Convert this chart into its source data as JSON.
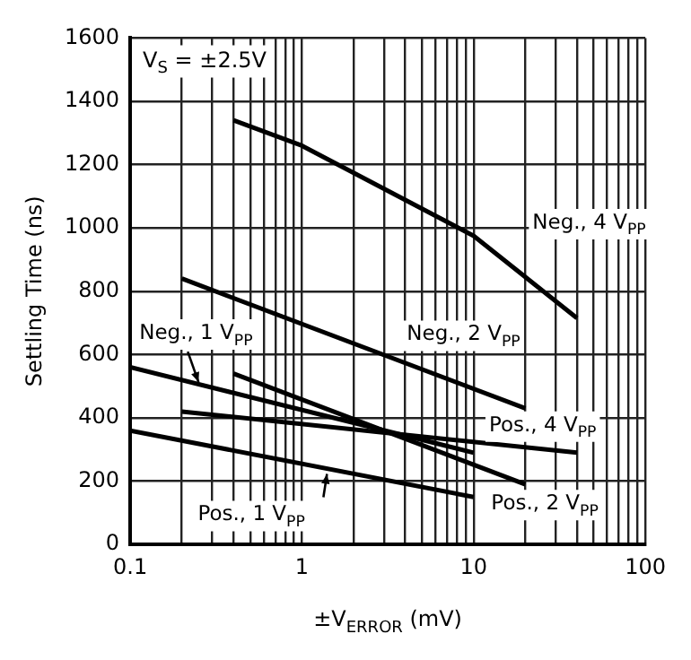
{
  "chart_data": {
    "type": "line",
    "xlabel": "±V$_{ERROR}$ (mV)",
    "ylabel": "Settling Time (ns)",
    "log": "x",
    "grid": true,
    "xlim": [
      0.1,
      100
    ],
    "xticks": [
      0.1,
      {
        "value": 0.2,
        "label": null
      },
      {
        "value": 0.3,
        "label": null
      },
      {
        "value": 0.4,
        "label": null
      },
      {
        "value": 0.5,
        "label": null
      },
      {
        "value": 0.6,
        "label": null
      },
      {
        "value": 0.7,
        "label": null
      },
      {
        "value": 0.8,
        "label": null
      },
      {
        "value": 0.9,
        "label": null
      },
      1,
      {
        "value": 2,
        "label": null
      },
      {
        "value": 3,
        "label": null
      },
      {
        "value": 4,
        "label": null
      },
      {
        "value": 5,
        "label": null
      },
      {
        "value": 6,
        "label": null
      },
      {
        "value": 7,
        "label": null
      },
      {
        "value": 8,
        "label": null
      },
      {
        "value": 9,
        "label": null
      },
      10,
      {
        "value": 20,
        "label": null
      },
      {
        "value": 30,
        "label": null
      },
      {
        "value": 40,
        "label": null
      },
      {
        "value": 50,
        "label": null
      },
      {
        "value": 60,
        "label": null
      },
      {
        "value": 70,
        "label": null
      },
      {
        "value": 80,
        "label": null
      },
      {
        "value": 90,
        "label": null
      },
      100
    ],
    "ylim": [
      0,
      1600
    ],
    "yticks": [
      0,
      200,
      400,
      600,
      800,
      1000,
      1200,
      1400,
      1600
    ],
    "series": [
      {
        "color": "#000000",
        "x": [
          0.4,
          1,
          10,
          40
        ],
        "values": [
          1340,
          1260,
          975,
          715
        ]
      },
      {
        "color": "#000000",
        "x": [
          0.2,
          20
        ],
        "values": [
          840,
          430
        ]
      },
      {
        "color": "#000000",
        "x": [
          0.1,
          10
        ],
        "values": [
          560,
          290
        ]
      },
      {
        "color": "#000000",
        "x": [
          0.2,
          40
        ],
        "values": [
          420,
          290
        ]
      },
      {
        "color": "#000000",
        "x": [
          0.4,
          20
        ],
        "values": [
          540,
          190
        ]
      },
      {
        "color": "#000000",
        "x": [
          0.1,
          10
        ],
        "values": [
          360,
          150
        ]
      }
    ],
    "annotations": [
      "V$_{S}$ = ±2.5V",
      {
        "text": "Neg., 4 V$_{PP}$",
        "x": 20,
        "y": 845
      },
      {
        "text": "Neg., 2 V$_{PP}$",
        "x": 20,
        "y": 430
      },
      {
        "text": "Neg., 1 V$_{PP}$",
        "x": 0.25,
        "y": 496
      },
      {
        "text": "Pos., 4 V$_{PP}$",
        "x": 40,
        "y": 290
      },
      {
        "text": "Pos., 2 V$_{PP}$",
        "x": 20,
        "y": 190
      },
      {
        "text": "Pos., 1 V$_{PP}$",
        "x": 1.4,
        "y": 240
      }
    ]
  }
}
